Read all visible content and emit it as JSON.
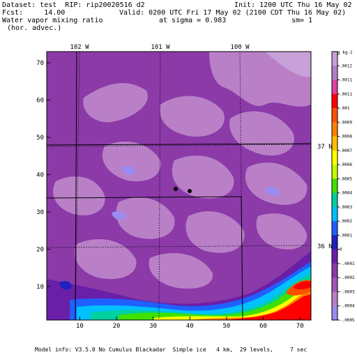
{
  "header": {
    "dataset": "Dataset: test  RIP: rip20020516 d2",
    "init": "Init: 1200 UTC Thu 16 May 02",
    "fcst": "Fcst:     14.00",
    "valid": "Valid: 0200 UTC Fri 17 May 02 (2100 CDT Thu 16 May 02)",
    "field": "Water vapor mixing ratio",
    "sigma": "at sigma = 0.983",
    "sm": "sm= 1",
    "advec": "(hor. advec.)"
  },
  "map": {
    "lon_labels": [
      "102 W",
      "101 W",
      "100 W"
    ],
    "lat_labels": [
      "37 N",
      "36 N"
    ],
    "x_ticks": [
      "10",
      "20",
      "30",
      "40",
      "50",
      "60",
      "70"
    ],
    "y_ticks": [
      "10",
      "20",
      "30",
      "40",
      "50",
      "60",
      "70"
    ],
    "x_range": [
      1,
      73
    ],
    "y_range": [
      1,
      73
    ]
  },
  "colorbar": {
    "unit": "g kg-1",
    "labels": [
      ".0012",
      ".0011",
      ".0011",
      ".001",
      ".0009",
      ".0008",
      ".0007",
      ".0006",
      ".0005",
      ".0004",
      ".0003",
      ".0002",
      ".0001",
      "0",
      "-.0001",
      "-.0002",
      "-.0003",
      "-.0004",
      "-.0005"
    ],
    "colors": [
      "#c8a0d8",
      "#b080c8",
      "#e040a0",
      "#ff0000",
      "#ff5000",
      "#ff8000",
      "#ffc000",
      "#ffff00",
      "#c0ff00",
      "#40e000",
      "#00d0a0",
      "#00c0ff",
      "#2060ff",
      "#2020c0",
      "#6a1fa8",
      "#8b3aa8",
      "#a455b8",
      "#b980c8",
      "#9a8cf0"
    ]
  },
  "footer": "Model info: V3.5.0 No Cumulus Blackadar  Simple ice   4 km,  29 levels,     7 sec"
}
